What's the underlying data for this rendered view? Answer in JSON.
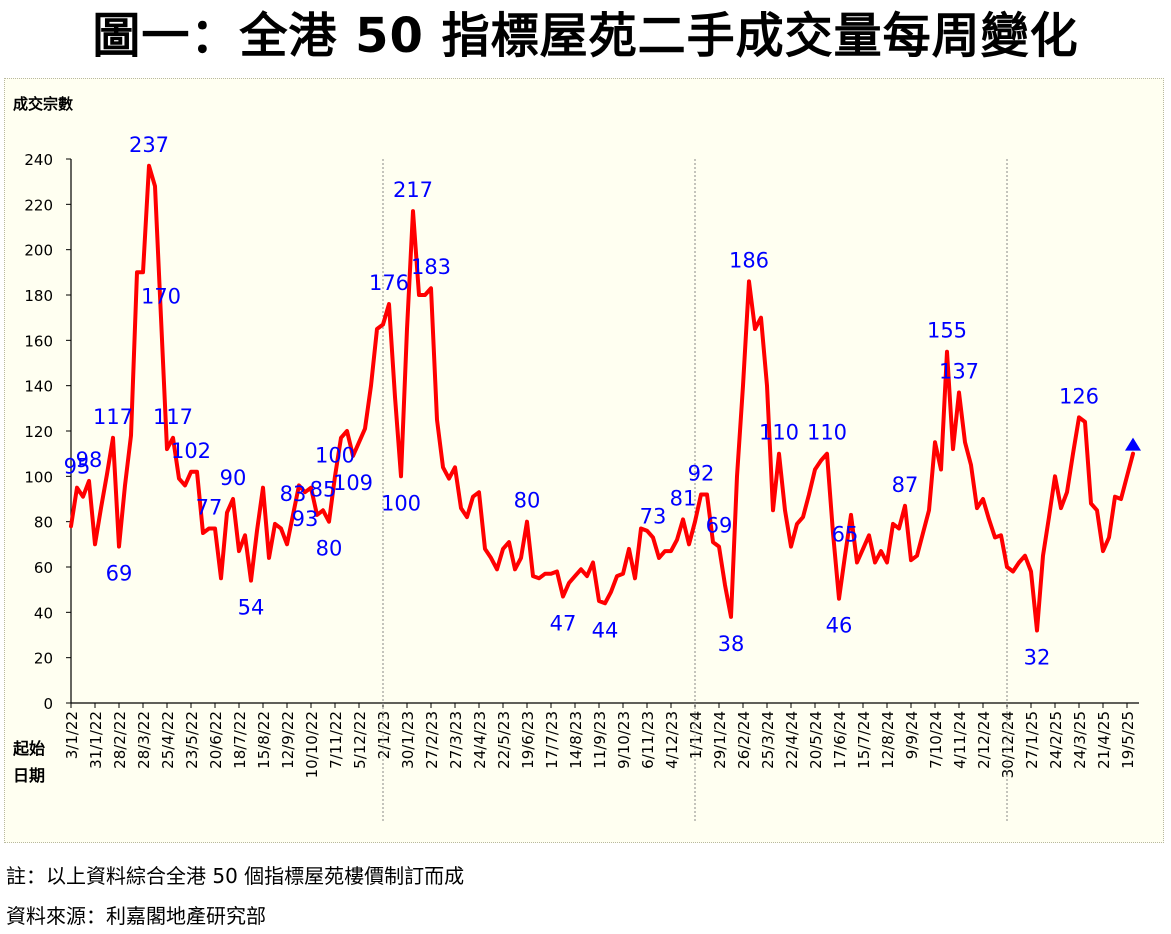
{
  "title": "圖一：全港 50 指標屋苑二手成交量每周變化",
  "notes": {
    "note": "註：以上資料綜合全港 50 個指標屋苑樓價制訂而成",
    "source": "資料來源：利嘉閣地產研究部"
  },
  "colors": {
    "line": "#ff0000",
    "labels": "#0000ff",
    "background": "#fffff1",
    "end_marker": "#0000ff"
  },
  "chart_data": {
    "type": "line",
    "title": "",
    "ylabel": "成交宗數",
    "xlabel": "起始日期",
    "ylim": [
      0,
      240
    ],
    "yticks": [
      0,
      20,
      40,
      60,
      80,
      100,
      120,
      140,
      160,
      180,
      200,
      220,
      240
    ],
    "grid": false,
    "year_dividers": [
      "2/1/23",
      "1/1/24",
      "30/12/24"
    ],
    "xticks": [
      "3/1/22",
      "31/1/22",
      "28/2/22",
      "28/3/22",
      "25/4/22",
      "23/5/22",
      "20/6/22",
      "18/7/22",
      "15/8/22",
      "12/9/22",
      "10/10/22",
      "7/11/22",
      "5/12/22",
      "2/1/23",
      "30/1/23",
      "27/2/23",
      "27/3/23",
      "24/4/23",
      "22/5/23",
      "19/6/23",
      "17/7/23",
      "14/8/23",
      "11/9/23",
      "9/10/23",
      "6/11/23",
      "4/12/23",
      "1/1/24",
      "29/1/24",
      "26/2/24",
      "25/3/24",
      "22/4/24",
      "20/5/24",
      "17/6/24",
      "15/7/24",
      "12/8/24",
      "9/9/24",
      "7/10/24",
      "4/11/24",
      "2/12/24",
      "30/12/24",
      "27/1/25",
      "24/2/25",
      "24/3/25",
      "21/4/25",
      "19/5/25"
    ],
    "series": [
      {
        "name": "",
        "values": [
          78,
          95,
          91,
          98,
          70,
          86,
          101,
          117,
          69,
          96,
          118,
          190,
          190,
          237,
          228,
          170,
          112,
          117,
          99,
          96,
          102,
          102,
          75,
          77,
          77,
          55,
          84,
          90,
          67,
          74,
          54,
          76,
          95,
          64,
          79,
          77,
          70,
          83,
          96,
          93,
          95,
          83,
          85,
          80,
          100,
          117,
          120,
          109,
          115,
          121,
          140,
          165,
          167,
          176,
          135,
          100,
          165,
          217,
          180,
          180,
          183,
          125,
          104,
          99,
          104,
          86,
          82,
          91,
          93,
          68,
          64,
          59,
          68,
          71,
          59,
          64,
          80,
          56,
          55,
          57,
          57,
          58,
          47,
          53,
          56,
          59,
          56,
          62,
          45,
          44,
          49,
          56,
          57,
          68,
          55,
          77,
          76,
          73,
          64,
          67,
          67,
          72,
          81,
          70,
          80,
          92,
          92,
          71,
          69,
          52,
          38,
          100,
          140,
          186,
          165,
          170,
          140,
          85,
          110,
          85,
          69,
          79,
          82,
          92,
          103,
          107,
          110,
          75,
          46,
          65,
          83,
          62,
          68,
          74,
          62,
          67,
          62,
          79,
          77,
          87,
          63,
          65,
          75,
          85,
          115,
          103,
          155,
          112,
          137,
          115,
          105,
          86,
          90,
          81,
          73,
          74,
          60,
          58,
          62,
          65,
          58,
          32,
          65,
          82,
          100,
          86,
          93,
          110,
          126,
          124,
          88,
          85,
          67,
          73,
          91,
          90,
          100,
          110
        ]
      }
    ],
    "annotations": [
      "237",
      "117",
      "98",
      "69",
      "102",
      "95",
      "54",
      "80",
      "117",
      "176",
      "100",
      "217",
      "183",
      "93",
      "80",
      "47",
      "44",
      "77",
      "81",
      "92",
      "38",
      "186",
      "170",
      "85",
      "69",
      "109",
      "110",
      "83",
      "46",
      "87",
      "65",
      "155",
      "137",
      "90",
      "100",
      "32",
      "126",
      "73",
      "110"
    ]
  }
}
